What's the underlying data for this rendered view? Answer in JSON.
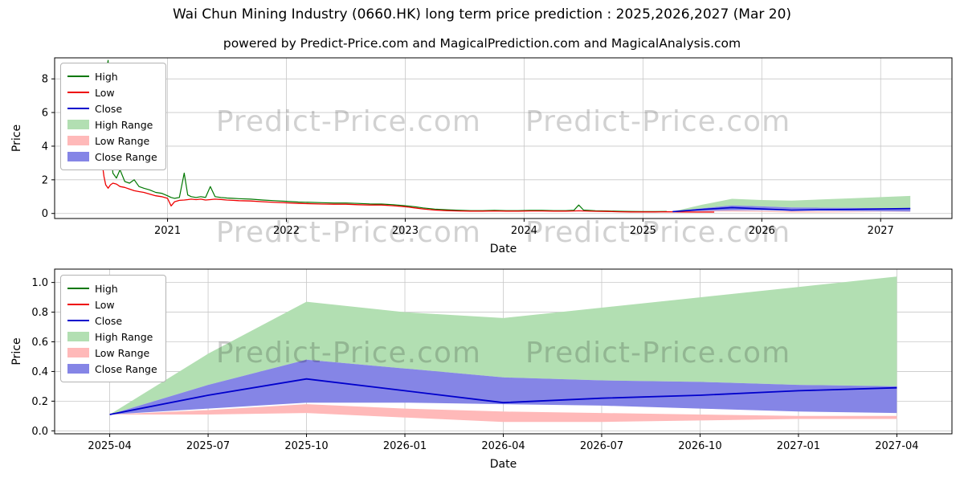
{
  "header": {
    "title": "Wai Chun Mining Industry (0660.HK) long term price prediction : 2025,2026,2027 (Mar 20)",
    "subtitle": "powered by Predict-Price.com and MagicalPrediction.com and MagicalAnalysis.com"
  },
  "watermark": "Predict-Price.com",
  "colors": {
    "high": "#007700",
    "low": "#ee0000",
    "close": "#0000cc",
    "high_range": "#b2dfb2",
    "low_range": "#ffb9b9",
    "close_range": "#8585e6",
    "grid": "#c8c8c8",
    "axis": "#000000"
  },
  "chart_data": [
    {
      "type": "line",
      "title": "",
      "xlabel": "Date",
      "ylabel": "Price",
      "xlim": [
        2020.05,
        2027.6
      ],
      "ylim": [
        -0.3,
        9.25
      ],
      "grid": true,
      "legend_position": "upper left",
      "legend": [
        "High",
        "Low",
        "Close",
        "High Range",
        "Low Range",
        "Close Range"
      ],
      "xticks": [
        {
          "v": 2021,
          "label": "2021"
        },
        {
          "v": 2022,
          "label": "2022"
        },
        {
          "v": 2023,
          "label": "2023"
        },
        {
          "v": 2024,
          "label": "2024"
        },
        {
          "v": 2025,
          "label": "2025"
        },
        {
          "v": 2026,
          "label": "2026"
        },
        {
          "v": 2027,
          "label": "2027"
        }
      ],
      "yticks": [
        {
          "v": 0,
          "label": "0"
        },
        {
          "v": 2,
          "label": "2"
        },
        {
          "v": 4,
          "label": "4"
        },
        {
          "v": 6,
          "label": "6"
        },
        {
          "v": 8,
          "label": "8"
        }
      ],
      "series": {
        "history": {
          "x": [
            2020.3,
            2020.33,
            2020.36,
            2020.39,
            2020.42,
            2020.45,
            2020.465,
            2020.48,
            2020.5,
            2020.52,
            2020.54,
            2020.57,
            2020.6,
            2020.64,
            2020.68,
            2020.72,
            2020.76,
            2020.8,
            2020.85,
            2020.9,
            2020.95,
            2021.0,
            2021.03,
            2021.06,
            2021.1,
            2021.14,
            2021.17,
            2021.2,
            2021.24,
            2021.28,
            2021.32,
            2021.36,
            2021.4,
            2021.45,
            2021.5,
            2021.55,
            2021.6,
            2021.7,
            2021.8,
            2021.9,
            2022.0,
            2022.1,
            2022.2,
            2022.3,
            2022.4,
            2022.5,
            2022.6,
            2022.7,
            2022.8,
            2022.9,
            2023.0,
            2023.08,
            2023.15,
            2023.25,
            2023.35,
            2023.45,
            2023.55,
            2023.65,
            2023.75,
            2023.85,
            2023.95,
            2024.05,
            2024.15,
            2024.25,
            2024.35,
            2024.42,
            2024.46,
            2024.5,
            2024.6,
            2024.7,
            2024.8,
            2024.9,
            2025.0,
            2025.1,
            2025.2
          ],
          "high": [
            3.05,
            3.05,
            3.05,
            3.05,
            3.05,
            3.05,
            3.0,
            8.3,
            9.1,
            4.2,
            2.4,
            2.1,
            2.6,
            1.9,
            1.8,
            2.0,
            1.6,
            1.5,
            1.4,
            1.25,
            1.2,
            1.05,
            0.95,
            0.9,
            0.95,
            2.4,
            1.1,
            1.0,
            0.95,
            1.0,
            0.95,
            1.6,
            1.0,
            0.95,
            0.92,
            0.9,
            0.88,
            0.85,
            0.8,
            0.76,
            0.72,
            0.68,
            0.66,
            0.64,
            0.62,
            0.62,
            0.6,
            0.57,
            0.56,
            0.52,
            0.46,
            0.4,
            0.33,
            0.26,
            0.22,
            0.19,
            0.17,
            0.17,
            0.18,
            0.17,
            0.17,
            0.18,
            0.18,
            0.17,
            0.17,
            0.19,
            0.5,
            0.2,
            0.16,
            0.15,
            0.13,
            0.12,
            0.11,
            0.11,
            0.12
          ],
          "low": [
            3.0,
            3.0,
            3.0,
            3.0,
            3.0,
            3.0,
            2.2,
            1.7,
            1.5,
            1.7,
            1.8,
            1.75,
            1.6,
            1.55,
            1.45,
            1.35,
            1.3,
            1.25,
            1.15,
            1.05,
            1.0,
            0.9,
            0.45,
            0.7,
            0.78,
            0.8,
            0.82,
            0.85,
            0.82,
            0.85,
            0.8,
            0.82,
            0.85,
            0.83,
            0.8,
            0.78,
            0.76,
            0.74,
            0.7,
            0.66,
            0.63,
            0.6,
            0.58,
            0.56,
            0.55,
            0.55,
            0.52,
            0.5,
            0.5,
            0.46,
            0.4,
            0.33,
            0.27,
            0.2,
            0.17,
            0.15,
            0.14,
            0.14,
            0.15,
            0.14,
            0.14,
            0.15,
            0.15,
            0.14,
            0.14,
            0.15,
            0.16,
            0.15,
            0.13,
            0.12,
            0.1,
            0.09,
            0.09,
            0.09,
            0.1
          ]
        },
        "low_extension": {
          "x": [
            2025.3,
            2025.45,
            2025.6
          ],
          "y": [
            0.09,
            0.08,
            0.08
          ]
        }
      }
    },
    {
      "type": "line",
      "title": "",
      "xlabel": "Date",
      "ylabel": "Price",
      "xlim": [
        2025.11,
        2027.39
      ],
      "ylim": [
        -0.02,
        1.09
      ],
      "grid": true,
      "legend_position": "upper left",
      "legend": [
        "High",
        "Low",
        "Close",
        "High Range",
        "Low Range",
        "Close Range"
      ],
      "xticks": [
        {
          "v": 2025.25,
          "label": "2025-04"
        },
        {
          "v": 2025.5,
          "label": "2025-07"
        },
        {
          "v": 2025.75,
          "label": "2025-10"
        },
        {
          "v": 2026.0,
          "label": "2026-01"
        },
        {
          "v": 2026.25,
          "label": "2026-04"
        },
        {
          "v": 2026.5,
          "label": "2026-07"
        },
        {
          "v": 2026.75,
          "label": "2026-10"
        },
        {
          "v": 2027.0,
          "label": "2027-01"
        },
        {
          "v": 2027.25,
          "label": "2027-04"
        }
      ],
      "yticks": [
        {
          "v": 0.0,
          "label": "0.0"
        },
        {
          "v": 0.2,
          "label": "0.2"
        },
        {
          "v": 0.4,
          "label": "0.4"
        },
        {
          "v": 0.6,
          "label": "0.6"
        },
        {
          "v": 0.8,
          "label": "0.8"
        },
        {
          "v": 1.0,
          "label": "1.0"
        }
      ],
      "series": {
        "x": [
          2025.25,
          2025.5,
          2025.75,
          2026.0,
          2026.25,
          2026.5,
          2026.75,
          2027.0,
          2027.25
        ],
        "close": [
          0.11,
          0.24,
          0.35,
          0.27,
          0.19,
          0.22,
          0.24,
          0.27,
          0.29
        ],
        "high_upper": [
          0.11,
          0.52,
          0.87,
          0.8,
          0.76,
          0.83,
          0.9,
          0.97,
          1.04
        ],
        "close_upper": [
          0.11,
          0.31,
          0.48,
          0.42,
          0.36,
          0.34,
          0.33,
          0.31,
          0.3
        ],
        "close_lower": [
          0.11,
          0.15,
          0.19,
          0.19,
          0.18,
          0.17,
          0.15,
          0.13,
          0.12
        ],
        "low_upper": [
          0.11,
          0.14,
          0.18,
          0.15,
          0.13,
          0.12,
          0.11,
          0.1,
          0.1
        ],
        "low_lower": [
          0.11,
          0.11,
          0.12,
          0.09,
          0.06,
          0.06,
          0.07,
          0.08,
          0.08
        ]
      }
    }
  ]
}
